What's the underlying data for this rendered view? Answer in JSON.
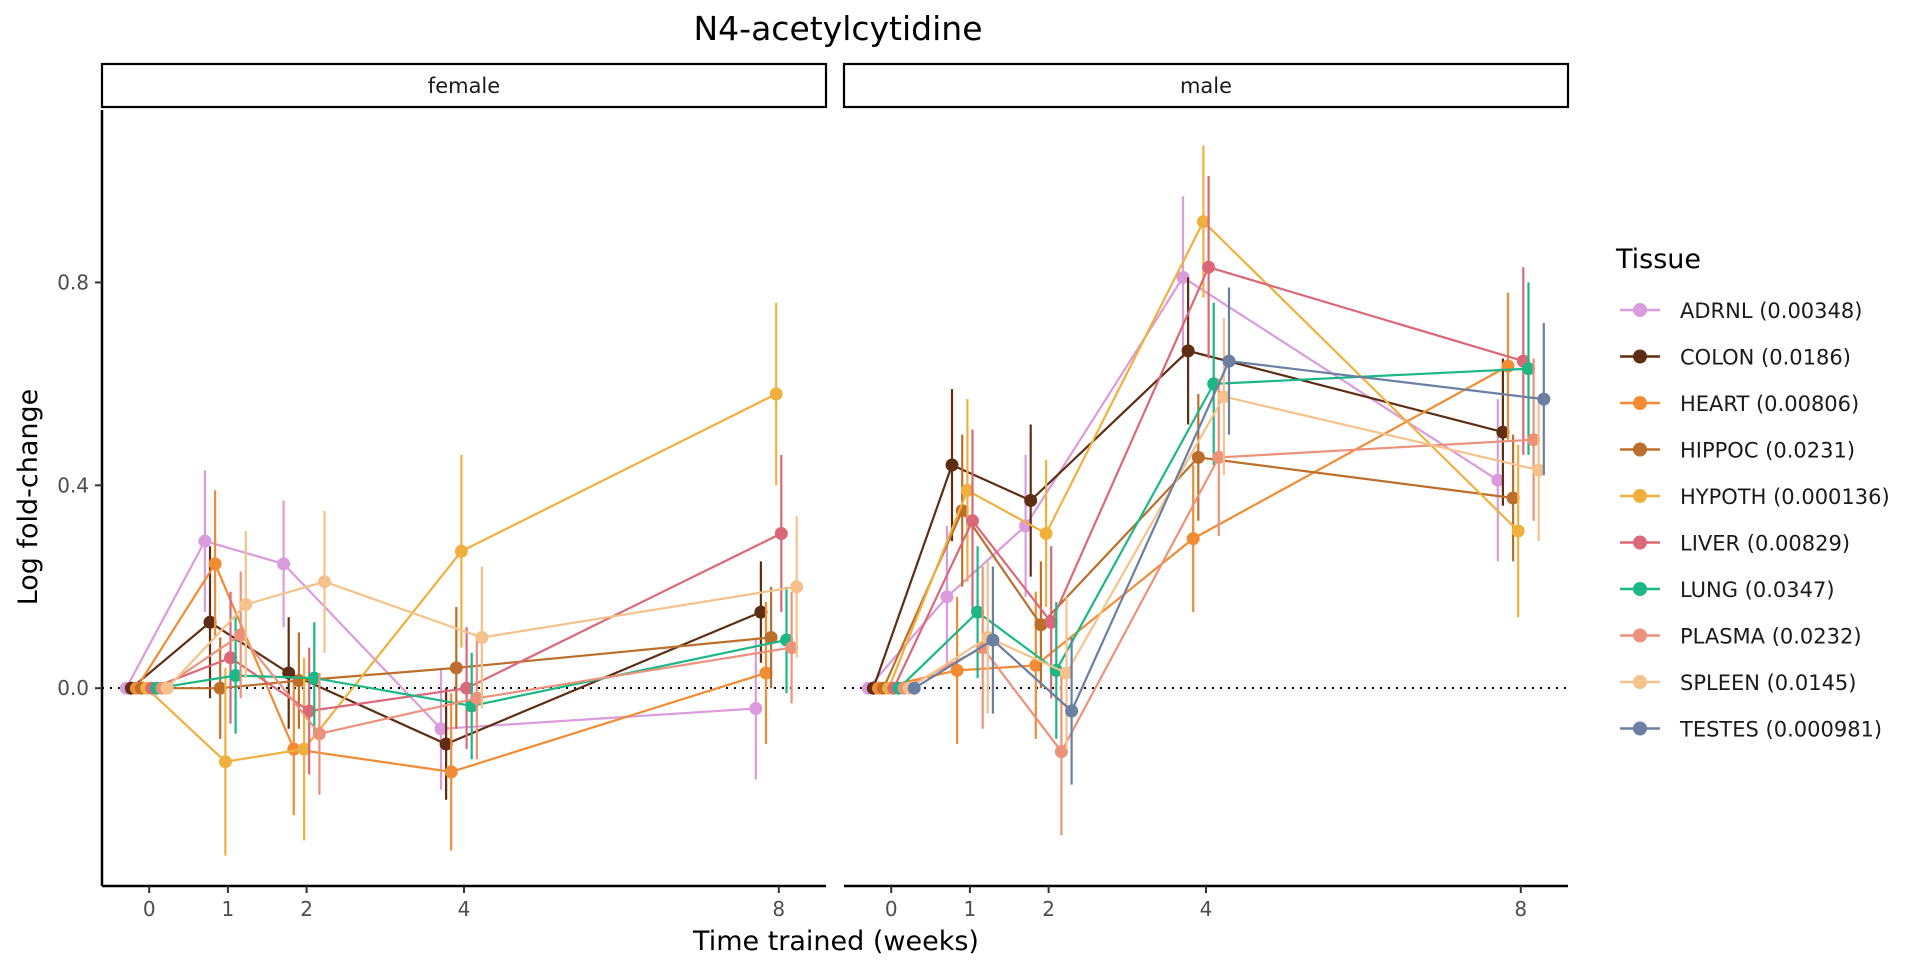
{
  "chart_data": {
    "type": "line",
    "title": "N4-acetylcytidine",
    "xlabel": "Time trained (weeks)",
    "ylabel": "Log fold-change",
    "x_ticks": [
      0,
      1,
      2,
      4,
      8
    ],
    "y_ticks": [
      0.0,
      0.4,
      0.8
    ],
    "y_tick_labels": [
      "0.0",
      "0.4",
      "0.8"
    ],
    "ylim": [
      -0.39,
      1.14
    ],
    "xlim": [
      -0.6,
      8.6
    ],
    "reference_line": 0,
    "grid": false,
    "legend_title": "Tissue",
    "legend_position": "right",
    "panels": [
      "female",
      "male"
    ],
    "series": [
      {
        "name": "ADRNL (0.00348)",
        "color": "#DA9CDC",
        "female": [
          [
            0,
            0,
            0,
            0
          ],
          [
            1,
            0.29,
            0.15,
            0.43
          ],
          [
            2,
            0.245,
            0.12,
            0.37
          ],
          [
            4,
            -0.08,
            -0.2,
            0.04
          ],
          [
            8,
            -0.04,
            -0.18,
            0.1
          ]
        ],
        "male": [
          [
            0,
            0,
            0,
            0
          ],
          [
            1,
            0.18,
            0.04,
            0.32
          ],
          [
            2,
            0.32,
            0.18,
            0.46
          ],
          [
            4,
            0.81,
            0.65,
            0.97
          ],
          [
            8,
            0.41,
            0.25,
            0.57
          ]
        ]
      },
      {
        "name": "COLON (0.0186)",
        "color": "#5D2E14",
        "female": [
          [
            0,
            0,
            0,
            0
          ],
          [
            1,
            0.13,
            -0.02,
            0.28
          ],
          [
            2,
            0.03,
            -0.08,
            0.14
          ],
          [
            4,
            -0.11,
            -0.22,
            0.0
          ],
          [
            8,
            0.15,
            0.05,
            0.25
          ]
        ],
        "male": [
          [
            0,
            0,
            0,
            0
          ],
          [
            1,
            0.44,
            0.29,
            0.59
          ],
          [
            2,
            0.37,
            0.22,
            0.52
          ],
          [
            4,
            0.665,
            0.52,
            0.81
          ],
          [
            8,
            0.505,
            0.36,
            0.65
          ]
        ]
      },
      {
        "name": "HEART (0.00806)",
        "color": "#F28C34",
        "female": [
          [
            0,
            0,
            0,
            0
          ],
          [
            1,
            0.245,
            0.1,
            0.39
          ],
          [
            2,
            -0.12,
            -0.25,
            0.01
          ],
          [
            4,
            -0.165,
            -0.32,
            -0.01
          ],
          [
            8,
            0.03,
            -0.11,
            0.17
          ]
        ],
        "male": [
          [
            0,
            0,
            0,
            0
          ],
          [
            1,
            0.035,
            -0.11,
            0.18
          ],
          [
            2,
            0.045,
            -0.1,
            0.19
          ],
          [
            4,
            0.295,
            0.15,
            0.44
          ],
          [
            8,
            0.635,
            0.49,
            0.78
          ]
        ]
      },
      {
        "name": "HIPPOC (0.0231)",
        "color": "#BC6F2C",
        "female": [
          [
            0,
            0,
            0,
            0
          ],
          [
            1,
            0.0,
            -0.1,
            0.1
          ],
          [
            2,
            0.015,
            -0.08,
            0.11
          ],
          [
            4,
            0.04,
            -0.08,
            0.16
          ],
          [
            8,
            0.1,
            0.0,
            0.2
          ]
        ],
        "male": [
          [
            0,
            0,
            0,
            0
          ],
          [
            1,
            0.35,
            0.2,
            0.5
          ],
          [
            2,
            0.125,
            0.0,
            0.25
          ],
          [
            4,
            0.455,
            0.33,
            0.58
          ],
          [
            8,
            0.375,
            0.25,
            0.5
          ]
        ]
      },
      {
        "name": "HYPOTH (0.000136)",
        "color": "#F0B03E",
        "female": [
          [
            0,
            0,
            0,
            0
          ],
          [
            1,
            -0.145,
            -0.33,
            0.04
          ],
          [
            2,
            -0.12,
            -0.3,
            0.06
          ],
          [
            4,
            0.27,
            0.08,
            0.46
          ],
          [
            8,
            0.58,
            0.4,
            0.76
          ]
        ],
        "male": [
          [
            0,
            0,
            0,
            0
          ],
          [
            1,
            0.39,
            0.21,
            0.57
          ],
          [
            2,
            0.305,
            0.16,
            0.45
          ],
          [
            4,
            0.92,
            0.77,
            1.07
          ],
          [
            8,
            0.31,
            0.14,
            0.48
          ]
        ]
      },
      {
        "name": "LIVER (0.00829)",
        "color": "#DB6878",
        "female": [
          [
            0,
            0,
            0,
            0
          ],
          [
            1,
            0.06,
            -0.07,
            0.19
          ],
          [
            2,
            -0.045,
            -0.17,
            0.08
          ],
          [
            4,
            0.0,
            -0.12,
            0.12
          ],
          [
            8,
            0.305,
            0.15,
            0.46
          ]
        ],
        "male": [
          [
            0,
            0,
            0,
            0
          ],
          [
            1,
            0.33,
            0.15,
            0.51
          ],
          [
            2,
            0.13,
            -0.02,
            0.28
          ],
          [
            4,
            0.83,
            0.65,
            1.01
          ],
          [
            8,
            0.645,
            0.46,
            0.83
          ]
        ]
      },
      {
        "name": "LUNG (0.0347)",
        "color": "#1BB886",
        "female": [
          [
            0,
            0,
            0,
            0
          ],
          [
            1,
            0.025,
            -0.09,
            0.14
          ],
          [
            2,
            0.02,
            -0.09,
            0.13
          ],
          [
            4,
            -0.035,
            -0.14,
            0.07
          ],
          [
            8,
            0.095,
            -0.01,
            0.2
          ]
        ],
        "male": [
          [
            0,
            0,
            0,
            0
          ],
          [
            1,
            0.15,
            0.02,
            0.28
          ],
          [
            2,
            0.035,
            -0.1,
            0.17
          ],
          [
            4,
            0.6,
            0.44,
            0.76
          ],
          [
            8,
            0.63,
            0.46,
            0.8
          ]
        ]
      },
      {
        "name": "PLASMA (0.0232)",
        "color": "#EC917A",
        "female": [
          [
            0,
            0,
            0,
            0
          ],
          [
            1,
            0.105,
            -0.02,
            0.23
          ],
          [
            2,
            -0.09,
            -0.21,
            0.03
          ],
          [
            4,
            -0.02,
            -0.14,
            0.1
          ],
          [
            8,
            0.08,
            -0.03,
            0.19
          ]
        ],
        "male": [
          [
            0,
            0,
            0,
            0
          ],
          [
            1,
            0.08,
            -0.08,
            0.24
          ],
          [
            2,
            -0.125,
            -0.29,
            0.04
          ],
          [
            4,
            0.455,
            0.3,
            0.61
          ],
          [
            8,
            0.49,
            0.33,
            0.65
          ]
        ]
      },
      {
        "name": "SPLEEN (0.0145)",
        "color": "#F6C28B",
        "female": [
          [
            0,
            0,
            0,
            0
          ],
          [
            1,
            0.165,
            0.02,
            0.31
          ],
          [
            2,
            0.21,
            0.07,
            0.35
          ],
          [
            4,
            0.1,
            -0.04,
            0.24
          ],
          [
            8,
            0.2,
            0.06,
            0.34
          ]
        ],
        "male": [
          [
            0,
            0,
            0,
            0
          ],
          [
            1,
            0.1,
            -0.05,
            0.25
          ],
          [
            2,
            0.03,
            -0.12,
            0.18
          ],
          [
            4,
            0.575,
            0.42,
            0.73
          ],
          [
            8,
            0.43,
            0.29,
            0.57
          ]
        ]
      },
      {
        "name": "TESTES (0.000981)",
        "color": "#6A7FA1",
        "female": [],
        "male": [
          [
            0,
            0,
            0,
            0
          ],
          [
            1,
            0.095,
            -0.05,
            0.24
          ],
          [
            2,
            -0.045,
            -0.19,
            0.1
          ],
          [
            4,
            0.645,
            0.5,
            0.79
          ],
          [
            8,
            0.57,
            0.42,
            0.72
          ]
        ]
      }
    ]
  }
}
